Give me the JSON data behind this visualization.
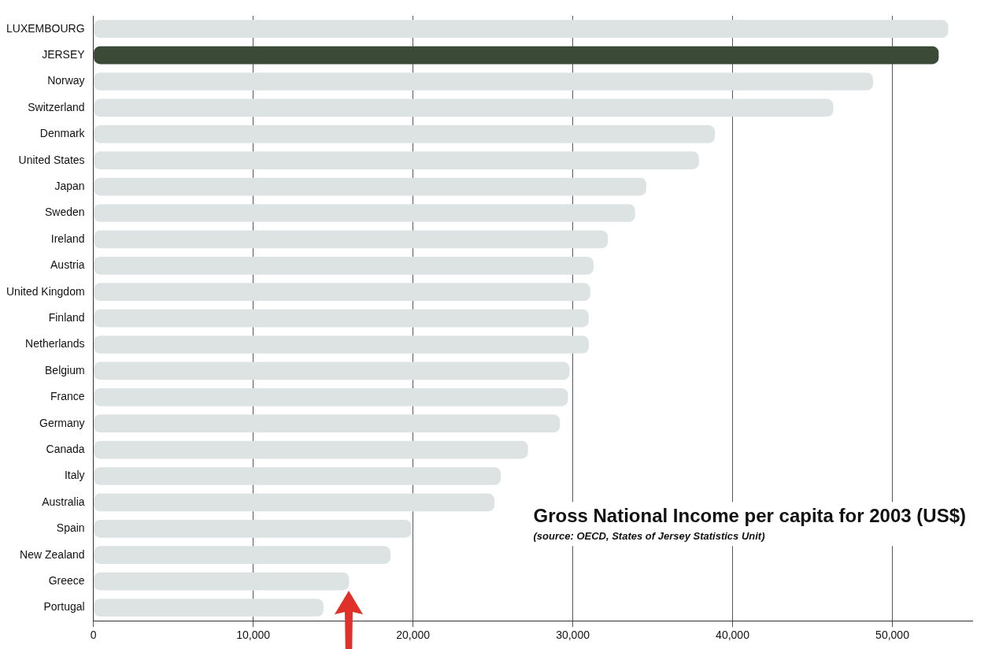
{
  "chart_data": {
    "type": "bar",
    "orientation": "horizontal",
    "title": "Gross National Income per capita for 2003 (US$)",
    "subtitle": "(source: OECD, States of Jersey Statistics Unit)",
    "categories": [
      "LUXEMBOURG",
      "JERSEY",
      "Norway",
      "Switzerland",
      "Denmark",
      "United States",
      "Japan",
      "Sweden",
      "Ireland",
      "Austria",
      "United Kingdom",
      "Finland",
      "Netherlands",
      "Belgium",
      "France",
      "Germany",
      "Canada",
      "Italy",
      "Australia",
      "Spain",
      "New Zealand",
      "Greece",
      "Portugal"
    ],
    "values": [
      53500,
      52900,
      48800,
      46300,
      38900,
      37900,
      34600,
      33900,
      32200,
      31300,
      31100,
      31000,
      31000,
      29800,
      29700,
      29200,
      27200,
      25500,
      25100,
      19900,
      18600,
      16000,
      14400
    ],
    "colors": [
      "#dde3e3",
      "#3a4a36",
      "#dde3e3",
      "#dde3e3",
      "#dde3e3",
      "#dde3e3",
      "#dde3e3",
      "#dde3e3",
      "#dde3e3",
      "#dde3e3",
      "#dde3e3",
      "#dde3e3",
      "#dde3e3",
      "#dde3e3",
      "#dde3e3",
      "#dde3e3",
      "#dde3e3",
      "#dde3e3",
      "#dde3e3",
      "#dde3e3",
      "#dde3e3",
      "#dde3e3",
      "#dde3e3"
    ],
    "xlim": [
      0,
      55000
    ],
    "xticks": [
      0,
      {
        "value": 10000,
        "label": "10,000"
      },
      {
        "value": 20000,
        "label": "20,000"
      },
      {
        "value": 30000,
        "label": "30,000"
      },
      {
        "value": 40000,
        "label": "40,000"
      },
      {
        "value": 50000,
        "label": "50,000"
      }
    ],
    "grid": "x",
    "legend": false
  }
}
